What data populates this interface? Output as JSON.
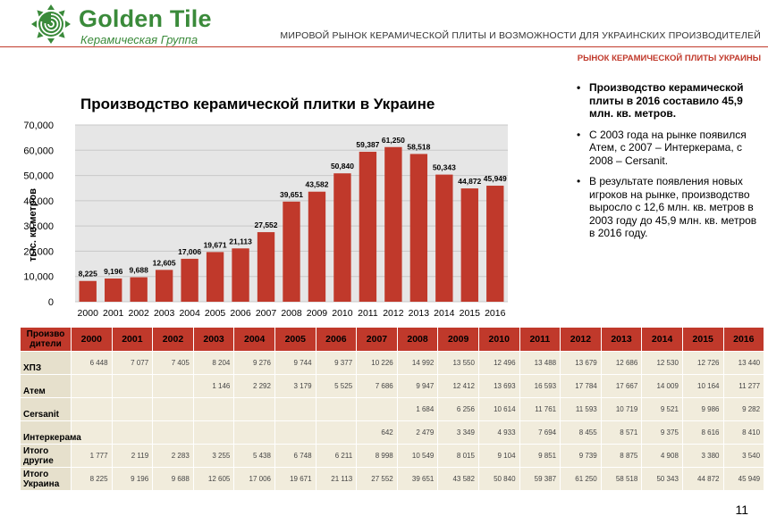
{
  "brand": {
    "name": "Golden Tile",
    "subtitle": "Керамическая Группа",
    "colors": {
      "green": "#3a8a3a",
      "red": "#c0392b"
    }
  },
  "header": {
    "title": "МИРОВОЙ РЫНОК КЕРАМИЧЕСКОЙ ПЛИТЫ И ВОЗМОЖНОСТИ ДЛЯ УКРАИНСКИХ ПРОИЗВОДИТЕЛЕЙ",
    "section": "РЫНОК КЕРАМИЧЕСКОЙ ПЛИТЫ УКРАИНЫ"
  },
  "chart_data": {
    "type": "bar",
    "title": "Производство керамической плитки в Украине",
    "ylabel": "тыс. кв.метров",
    "xlabel": "",
    "categories": [
      "2000",
      "2001",
      "2002",
      "2003",
      "2004",
      "2005",
      "2006",
      "2007",
      "2008",
      "2009",
      "2010",
      "2011",
      "2012",
      "2013",
      "2014",
      "2015",
      "2016"
    ],
    "values": [
      8225,
      9196,
      9688,
      12605,
      17006,
      19671,
      21113,
      27552,
      39651,
      43582,
      50840,
      59387,
      61250,
      58518,
      50343,
      44872,
      45949
    ],
    "value_labels": [
      "8,225",
      "9,196",
      "9,688",
      "12,605",
      "17,006",
      "19,671",
      "21,113",
      "27,552",
      "39,651",
      "43,582",
      "50,840",
      "59,387",
      "61,250",
      "58,518",
      "50,343",
      "44,872",
      "45,949"
    ],
    "yticks": [
      "0",
      "10,000",
      "20,000",
      "30,000",
      "40,000",
      "50,000",
      "60,000",
      "70,000"
    ],
    "ylim": [
      0,
      70000
    ],
    "grid": true,
    "bar_color": "#c0392b",
    "plot_bg": "#e6e6e6"
  },
  "bullets": [
    {
      "text": "Производство керамической плиты в 2016 составило 45,9 млн. кв. метров.",
      "bold": true
    },
    {
      "text": "С 2003 года на рынке появился Атем, с 2007 – Интеркерама, с 2008 – Cersanit.",
      "bold": false
    },
    {
      "text": "В результате появления новых игроков на рынке, производство выросло с 12,6 млн. кв. метров в 2003 году до 45,9 млн. кв. метров в 2016 году.",
      "bold": false
    }
  ],
  "table": {
    "corner": "Произво дители",
    "years": [
      "2000",
      "2001",
      "2002",
      "2003",
      "2004",
      "2005",
      "2006",
      "2007",
      "2008",
      "2009",
      "2010",
      "2011",
      "2012",
      "2013",
      "2014",
      "2015",
      "2016"
    ],
    "rows": [
      {
        "name": "ХПЗ",
        "cells": [
          "6 448",
          "7 077",
          "7 405",
          "8 204",
          "9 276",
          "9 744",
          "9 377",
          "10 226",
          "14 992",
          "13 550",
          "12 496",
          "13 488",
          "13 679",
          "12 686",
          "12 530",
          "12 726",
          "13 440"
        ]
      },
      {
        "name": "Атем",
        "cells": [
          "",
          "",
          "",
          "1 146",
          "2 292",
          "3 179",
          "5 525",
          "7 686",
          "9 947",
          "12 412",
          "13 693",
          "16 593",
          "17 784",
          "17 667",
          "14 009",
          "10 164",
          "11 277"
        ]
      },
      {
        "name": "Cersanit",
        "cells": [
          "",
          "",
          "",
          "",
          "",
          "",
          "",
          "",
          "1 684",
          "6 256",
          "10 614",
          "11 761",
          "11 593",
          "10 719",
          "9 521",
          "9 986",
          "9 282"
        ]
      },
      {
        "name": "Интеркерама",
        "cells": [
          "",
          "",
          "",
          "",
          "",
          "",
          "",
          "642",
          "2 479",
          "3 349",
          "4 933",
          "7 694",
          "8 455",
          "8 571",
          "9 375",
          "8 616",
          "8 410"
        ]
      },
      {
        "name": "Итого другие",
        "cells": [
          "1 777",
          "2 119",
          "2 283",
          "3 255",
          "5 438",
          "6 748",
          "6 211",
          "8 998",
          "10 549",
          "8 015",
          "9 104",
          "9 851",
          "9 739",
          "8 875",
          "4 908",
          "3 380",
          "3 540"
        ]
      },
      {
        "name": "Итого Украина",
        "cells": [
          "8 225",
          "9 196",
          "9 688",
          "12 605",
          "17 006",
          "19 671",
          "21 113",
          "27 552",
          "39 651",
          "43 582",
          "50 840",
          "59 387",
          "61 250",
          "58 518",
          "50 343",
          "44 872",
          "45 949"
        ]
      }
    ]
  },
  "page_number": "11"
}
